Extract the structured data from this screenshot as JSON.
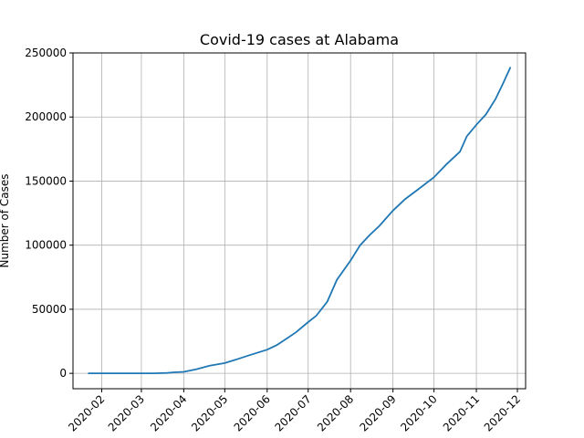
{
  "chart_data": {
    "type": "line",
    "title": "Covid-19 cases at Alabama",
    "xlabel": "",
    "ylabel": "Number of Cases",
    "ylim": [
      -12000,
      250000
    ],
    "xlim": [
      "2020-01-11",
      "2020-12-07"
    ],
    "grid": true,
    "y_ticks": [
      0,
      50000,
      100000,
      150000,
      200000,
      250000
    ],
    "x_ticks": [
      "2020-02",
      "2020-03",
      "2020-04",
      "2020-05",
      "2020-06",
      "2020-07",
      "2020-08",
      "2020-09",
      "2020-10",
      "2020-11",
      "2020-12"
    ],
    "line_color": "#1f77b4",
    "series": [
      {
        "x": [
          "2020-01-22",
          "2020-02-15",
          "2020-03-10",
          "2020-03-20",
          "2020-03-25",
          "2020-04-01",
          "2020-04-10",
          "2020-04-20",
          "2020-05-01",
          "2020-05-10",
          "2020-05-20",
          "2020-06-01",
          "2020-06-08",
          "2020-06-15",
          "2020-06-22",
          "2020-07-01",
          "2020-07-07",
          "2020-07-15",
          "2020-07-22",
          "2020-08-01",
          "2020-08-08",
          "2020-08-15",
          "2020-08-22",
          "2020-09-01",
          "2020-09-10",
          "2020-09-20",
          "2020-10-01",
          "2020-10-10",
          "2020-10-20",
          "2020-10-25",
          "2020-11-01",
          "2020-11-08",
          "2020-11-15",
          "2020-11-20",
          "2020-11-26"
        ],
        "y": [
          0,
          0,
          0,
          300,
          800,
          1200,
          3200,
          6000,
          8000,
          11000,
          14500,
          18500,
          22000,
          27000,
          32000,
          40000,
          45000,
          56000,
          73000,
          88000,
          100000,
          108000,
          115000,
          127000,
          136000,
          144000,
          153000,
          163000,
          173000,
          185000,
          194000,
          202000,
          214000,
          225000,
          239000
        ]
      }
    ]
  }
}
